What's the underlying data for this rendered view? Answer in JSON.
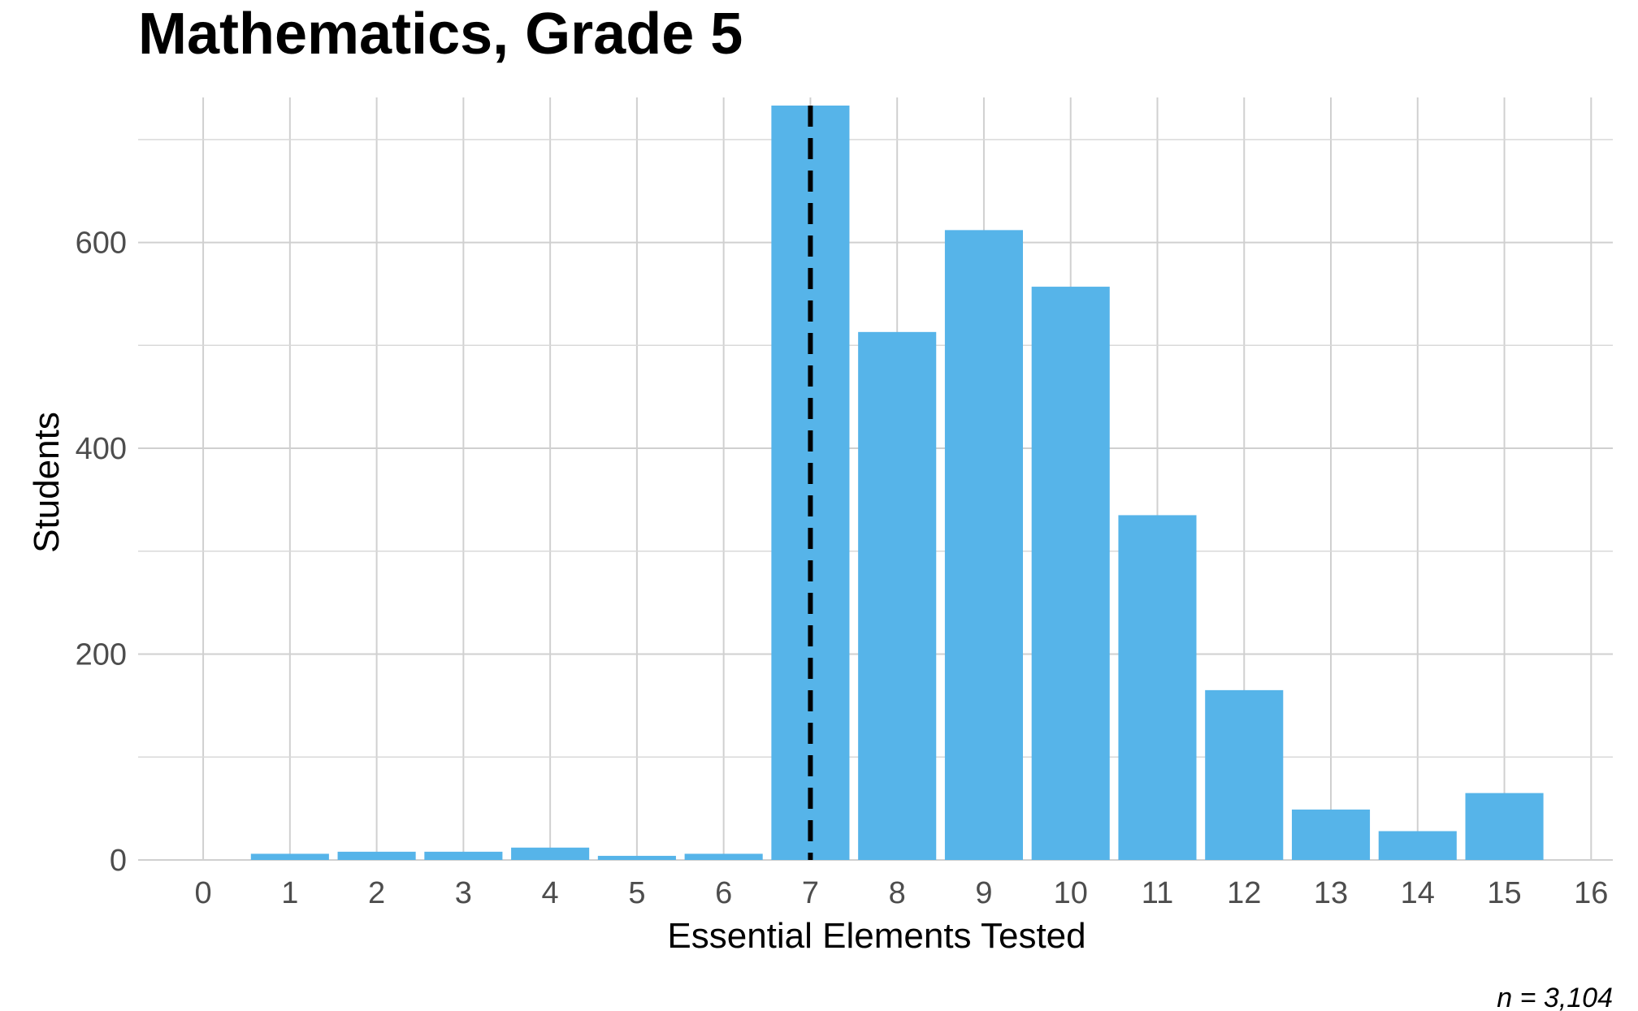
{
  "chart_data": {
    "type": "bar",
    "title": "Mathematics, Grade 5",
    "xlabel": "Essential Elements Tested",
    "ylabel": "Students",
    "caption": "n = 3,104",
    "x_ticks": [
      "0",
      "1",
      "2",
      "3",
      "4",
      "5",
      "6",
      "7",
      "8",
      "9",
      "10",
      "11",
      "12",
      "13",
      "14",
      "15",
      "16"
    ],
    "y_ticks": [
      "0",
      "200",
      "400",
      "600"
    ],
    "xlim": [
      -0.75,
      16.25
    ],
    "ylim": [
      0,
      733
    ],
    "categories": [
      1,
      2,
      3,
      4,
      5,
      6,
      7,
      8,
      9,
      10,
      11,
      12,
      13,
      14,
      15
    ],
    "values": [
      6,
      8,
      8,
      12,
      4,
      6,
      733,
      513,
      612,
      557,
      335,
      165,
      49,
      28,
      65
    ],
    "reference_line": {
      "x": 7,
      "style": "dashed",
      "color": "#000000"
    },
    "bar_color": "#56B4E9",
    "grid": true,
    "legend": "none"
  }
}
